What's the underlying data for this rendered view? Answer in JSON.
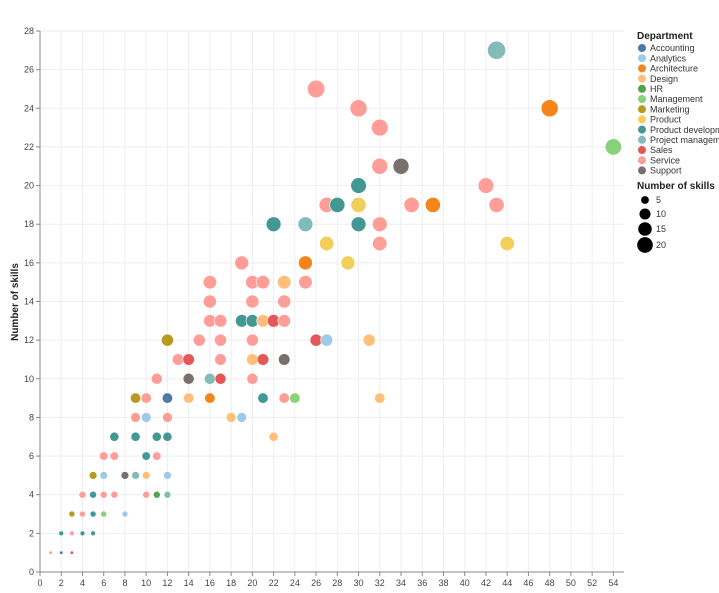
{
  "chart_data": {
    "type": "scatter",
    "xlabel": "",
    "ylabel": "Number of skills",
    "xlim": [
      0,
      55
    ],
    "ylim": [
      0,
      28
    ],
    "x_ticks": [
      0,
      2,
      4,
      6,
      8,
      10,
      12,
      14,
      16,
      18,
      20,
      22,
      24,
      26,
      28,
      30,
      32,
      34,
      36,
      38,
      40,
      42,
      44,
      46,
      48,
      50,
      52,
      54
    ],
    "y_ticks": [
      0,
      2,
      4,
      6,
      8,
      10,
      12,
      14,
      16,
      18,
      20,
      22,
      24,
      26,
      28
    ],
    "grid": true,
    "legend_position": "right",
    "color_legend_title": "Department",
    "size_legend_title": "Number of skills",
    "size_legend_values": [
      5,
      10,
      15,
      20
    ],
    "departments": [
      {
        "name": "Accounting",
        "color": "#4c78a8"
      },
      {
        "name": "Analytics",
        "color": "#9ecae9"
      },
      {
        "name": "Architecture",
        "color": "#f58518"
      },
      {
        "name": "Design",
        "color": "#ffbf79"
      },
      {
        "name": "HR",
        "color": "#54a24b"
      },
      {
        "name": "Management",
        "color": "#88d27a"
      },
      {
        "name": "Marketing",
        "color": "#b79a20"
      },
      {
        "name": "Product",
        "color": "#f2cf5b"
      },
      {
        "name": "Product developme",
        "color": "#439894"
      },
      {
        "name": "Project manageme",
        "color": "#83bcb6"
      },
      {
        "name": "Sales",
        "color": "#e45756"
      },
      {
        "name": "Service",
        "color": "#ff9d98"
      },
      {
        "name": "Support",
        "color": "#79706e"
      }
    ],
    "points": [
      {
        "x": 1,
        "y": 1,
        "d": "Service"
      },
      {
        "x": 2,
        "y": 1,
        "d": "Accounting"
      },
      {
        "x": 3,
        "y": 1,
        "d": "Sales"
      },
      {
        "x": 2,
        "y": 2,
        "d": "Product developme"
      },
      {
        "x": 3,
        "y": 2,
        "d": "Service"
      },
      {
        "x": 4,
        "y": 2,
        "d": "Product developme"
      },
      {
        "x": 5,
        "y": 2,
        "d": "Product developme"
      },
      {
        "x": 3,
        "y": 3,
        "d": "Marketing"
      },
      {
        "x": 4,
        "y": 3,
        "d": "Service"
      },
      {
        "x": 5,
        "y": 3,
        "d": "Product developme"
      },
      {
        "x": 6,
        "y": 3,
        "d": "Management"
      },
      {
        "x": 8,
        "y": 3,
        "d": "Analytics"
      },
      {
        "x": 4,
        "y": 4,
        "d": "Service"
      },
      {
        "x": 5,
        "y": 4,
        "d": "Product developme"
      },
      {
        "x": 6,
        "y": 4,
        "d": "Service"
      },
      {
        "x": 7,
        "y": 4,
        "d": "Service"
      },
      {
        "x": 10,
        "y": 4,
        "d": "Service"
      },
      {
        "x": 11,
        "y": 4,
        "d": "HR"
      },
      {
        "x": 12,
        "y": 4,
        "d": "Project manageme"
      },
      {
        "x": 5,
        "y": 5,
        "d": "Marketing"
      },
      {
        "x": 6,
        "y": 5,
        "d": "Analytics"
      },
      {
        "x": 8,
        "y": 5,
        "d": "Support"
      },
      {
        "x": 9,
        "y": 5,
        "d": "Project manageme"
      },
      {
        "x": 10,
        "y": 5,
        "d": "Design"
      },
      {
        "x": 12,
        "y": 5,
        "d": "Analytics"
      },
      {
        "x": 6,
        "y": 6,
        "d": "Service"
      },
      {
        "x": 7,
        "y": 6,
        "d": "Service"
      },
      {
        "x": 10,
        "y": 6,
        "d": "Product developme"
      },
      {
        "x": 11,
        "y": 6,
        "d": "Service"
      },
      {
        "x": 7,
        "y": 7,
        "d": "Product developme"
      },
      {
        "x": 9,
        "y": 7,
        "d": "Product developme"
      },
      {
        "x": 11,
        "y": 7,
        "d": "Product developme"
      },
      {
        "x": 12,
        "y": 7,
        "d": "Product developme"
      },
      {
        "x": 22,
        "y": 7,
        "d": "Design"
      },
      {
        "x": 9,
        "y": 8,
        "d": "Service"
      },
      {
        "x": 10,
        "y": 8,
        "d": "Analytics"
      },
      {
        "x": 12,
        "y": 8,
        "d": "Service"
      },
      {
        "x": 18,
        "y": 8,
        "d": "Design"
      },
      {
        "x": 19,
        "y": 8,
        "d": "Analytics"
      },
      {
        "x": 9,
        "y": 9,
        "d": "Marketing"
      },
      {
        "x": 10,
        "y": 9,
        "d": "Service"
      },
      {
        "x": 12,
        "y": 9,
        "d": "Accounting"
      },
      {
        "x": 14,
        "y": 9,
        "d": "Design"
      },
      {
        "x": 16,
        "y": 9,
        "d": "Architecture"
      },
      {
        "x": 21,
        "y": 9,
        "d": "Product developme"
      },
      {
        "x": 23,
        "y": 9,
        "d": "Service"
      },
      {
        "x": 24,
        "y": 9,
        "d": "Management"
      },
      {
        "x": 32,
        "y": 9,
        "d": "Design"
      },
      {
        "x": 11,
        "y": 10,
        "d": "Service"
      },
      {
        "x": 14,
        "y": 10,
        "d": "Support"
      },
      {
        "x": 16,
        "y": 10,
        "d": "Project manageme"
      },
      {
        "x": 17,
        "y": 10,
        "d": "Sales"
      },
      {
        "x": 20,
        "y": 10,
        "d": "Service"
      },
      {
        "x": 13,
        "y": 11,
        "d": "Service"
      },
      {
        "x": 14,
        "y": 11,
        "d": "Sales"
      },
      {
        "x": 17,
        "y": 11,
        "d": "Service"
      },
      {
        "x": 20,
        "y": 11,
        "d": "Design"
      },
      {
        "x": 21,
        "y": 11,
        "d": "Sales"
      },
      {
        "x": 23,
        "y": 11,
        "d": "Support"
      },
      {
        "x": 12,
        "y": 12,
        "d": "Marketing"
      },
      {
        "x": 15,
        "y": 12,
        "d": "Service"
      },
      {
        "x": 17,
        "y": 12,
        "d": "Service"
      },
      {
        "x": 20,
        "y": 12,
        "d": "Service"
      },
      {
        "x": 26,
        "y": 12,
        "d": "Sales"
      },
      {
        "x": 27,
        "y": 12,
        "d": "Analytics"
      },
      {
        "x": 31,
        "y": 12,
        "d": "Design"
      },
      {
        "x": 16,
        "y": 13,
        "d": "Service"
      },
      {
        "x": 17,
        "y": 13,
        "d": "Service"
      },
      {
        "x": 19,
        "y": 13,
        "d": "Product developme"
      },
      {
        "x": 20,
        "y": 13,
        "d": "Product developme"
      },
      {
        "x": 21,
        "y": 13,
        "d": "Design"
      },
      {
        "x": 22,
        "y": 13,
        "d": "Sales"
      },
      {
        "x": 23,
        "y": 13,
        "d": "Service"
      },
      {
        "x": 16,
        "y": 14,
        "d": "Service"
      },
      {
        "x": 20,
        "y": 14,
        "d": "Service"
      },
      {
        "x": 23,
        "y": 14,
        "d": "Service"
      },
      {
        "x": 16,
        "y": 15,
        "d": "Service"
      },
      {
        "x": 20,
        "y": 15,
        "d": "Service"
      },
      {
        "x": 21,
        "y": 15,
        "d": "Service"
      },
      {
        "x": 23,
        "y": 15,
        "d": "Design"
      },
      {
        "x": 25,
        "y": 15,
        "d": "Service"
      },
      {
        "x": 19,
        "y": 16,
        "d": "Service"
      },
      {
        "x": 25,
        "y": 16,
        "d": "Architecture"
      },
      {
        "x": 29,
        "y": 16,
        "d": "Product"
      },
      {
        "x": 27,
        "y": 17,
        "d": "Product"
      },
      {
        "x": 32,
        "y": 17,
        "d": "Service"
      },
      {
        "x": 44,
        "y": 17,
        "d": "Product"
      },
      {
        "x": 22,
        "y": 18,
        "d": "Product developme"
      },
      {
        "x": 25,
        "y": 18,
        "d": "Project manageme"
      },
      {
        "x": 30,
        "y": 18,
        "d": "Product developme"
      },
      {
        "x": 32,
        "y": 18,
        "d": "Service"
      },
      {
        "x": 27,
        "y": 19,
        "d": "Service"
      },
      {
        "x": 28,
        "y": 19,
        "d": "Product developme"
      },
      {
        "x": 30,
        "y": 19,
        "d": "Product"
      },
      {
        "x": 35,
        "y": 19,
        "d": "Service"
      },
      {
        "x": 37,
        "y": 19,
        "d": "Architecture"
      },
      {
        "x": 43,
        "y": 19,
        "d": "Service"
      },
      {
        "x": 30,
        "y": 20,
        "d": "Product developme"
      },
      {
        "x": 42,
        "y": 20,
        "d": "Service"
      },
      {
        "x": 32,
        "y": 21,
        "d": "Service"
      },
      {
        "x": 34,
        "y": 21,
        "d": "Support"
      },
      {
        "x": 54,
        "y": 22,
        "d": "Management"
      },
      {
        "x": 32,
        "y": 23,
        "d": "Service"
      },
      {
        "x": 30,
        "y": 24,
        "d": "Service"
      },
      {
        "x": 48,
        "y": 24,
        "d": "Architecture"
      },
      {
        "x": 26,
        "y": 25,
        "d": "Service"
      },
      {
        "x": 43,
        "y": 27,
        "d": "Project manageme"
      }
    ]
  }
}
